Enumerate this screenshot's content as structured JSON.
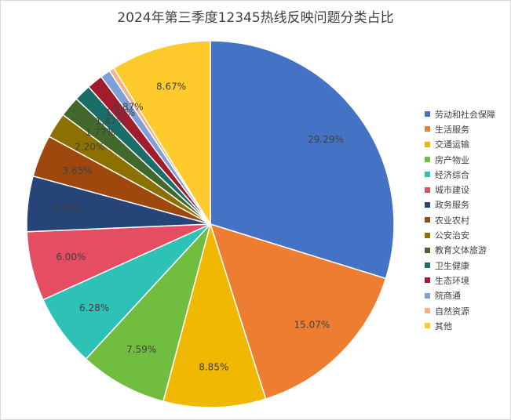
{
  "chart_data": {
    "type": "pie",
    "title": "2024年第三季度12345热线反映问题分类占比",
    "legend_position": "right",
    "slices": [
      {
        "name": "劳动和社会保障",
        "value": 29.29,
        "label": "29.29%",
        "color": "#4472C4"
      },
      {
        "name": "生活服务",
        "value": 15.07,
        "label": "15.07%",
        "color": "#ED7D31"
      },
      {
        "name": "交通运输",
        "value": 8.85,
        "label": "8.85%",
        "color": "#F0B800"
      },
      {
        "name": "房产物业",
        "value": 7.59,
        "label": "7.59%",
        "color": "#70BD3F"
      },
      {
        "name": "经济综合",
        "value": 6.28,
        "label": "6.28%",
        "color": "#2EC1B6"
      },
      {
        "name": "城市建设",
        "value": 6.0,
        "label": "6.00%",
        "color": "#E44D62"
      },
      {
        "name": "政务服务",
        "value": 4.8,
        "label": "4.80%",
        "color": "#264478"
      },
      {
        "name": "农业农村",
        "value": 3.65,
        "label": "3.65%",
        "color": "#9E480E"
      },
      {
        "name": "公安治安",
        "value": 2.2,
        "label": "2.20%",
        "color": "#8D7100"
      },
      {
        "name": "教育文体旅游",
        "value": 1.77,
        "label": "1.77%",
        "color": "#43682B"
      },
      {
        "name": "卫生健康",
        "value": 1.47,
        "label": "1.47%",
        "color": "#1B6D6A"
      },
      {
        "name": "生态环境",
        "value": 1.37,
        "label": "1.37%",
        "color": "#A11C2C"
      },
      {
        "name": "院商通",
        "value": 0.87,
        "label": "0.87%",
        "color": "#7F9FD8"
      },
      {
        "name": "自然资源",
        "value": 0.43,
        "label": "",
        "color": "#F4B183"
      },
      {
        "name": "其他",
        "value": 8.67,
        "label": "8.67%",
        "color": "#FFCA2C"
      }
    ]
  }
}
